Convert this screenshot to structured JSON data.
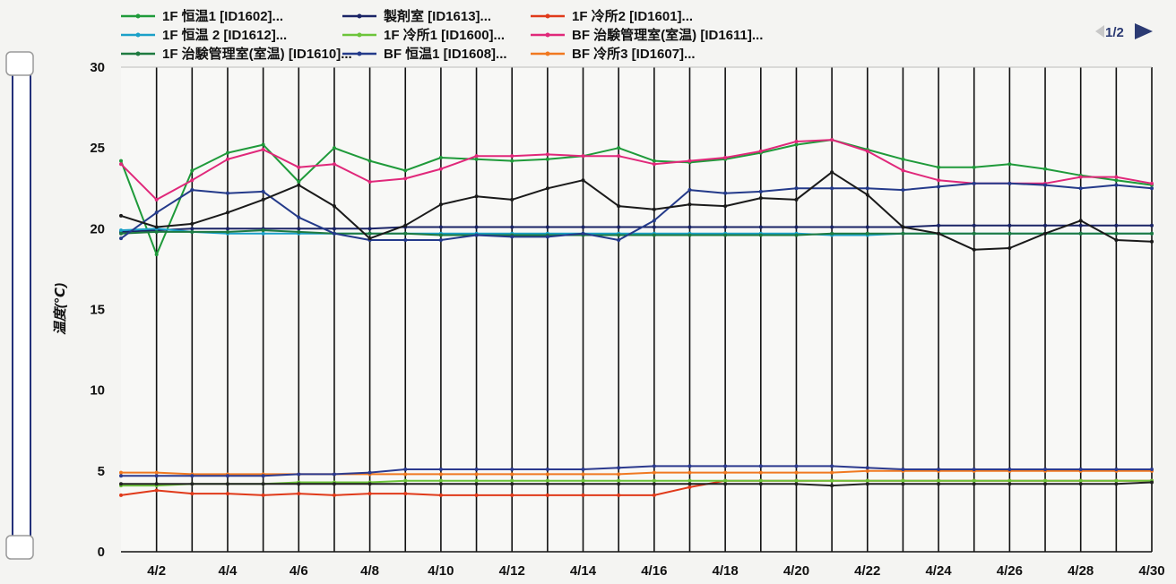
{
  "pager": {
    "label": "1/2"
  },
  "chart_data": {
    "type": "line",
    "title": "",
    "ylabel": "温度(℃)",
    "xlabel": "",
    "ylim": [
      0,
      30
    ],
    "yticks": [
      0,
      5,
      10,
      15,
      20,
      25,
      30
    ],
    "x_start_day": 1,
    "x_end_day": 30,
    "xtick_labels": [
      "4/2",
      "4/4",
      "4/6",
      "4/8",
      "4/10",
      "4/12",
      "4/14",
      "4/16",
      "4/18",
      "4/20",
      "4/22",
      "4/24",
      "4/26",
      "4/28",
      "4/30"
    ],
    "grid": "vertical lines every day",
    "legend_position": "top",
    "series": [
      {
        "name": "1F 恒温1 [ID1602]...",
        "color": "#1f9a3a",
        "values": [
          24.2,
          18.4,
          23.6,
          24.7,
          25.2,
          22.9,
          25.0,
          24.2,
          23.6,
          24.4,
          24.3,
          24.2,
          24.3,
          24.5,
          25.0,
          24.2,
          24.1,
          24.3,
          24.7,
          25.2,
          25.5,
          24.9,
          24.3,
          23.8,
          23.8,
          24.0,
          23.7,
          23.3,
          23.0,
          22.7
        ]
      },
      {
        "name": "製剤室 [ID1613]...",
        "color": "#1a2466",
        "values": [
          19.8,
          19.9,
          20.0,
          20.0,
          20.0,
          20.0,
          20.0,
          20.0,
          20.1,
          20.1,
          20.1,
          20.1,
          20.1,
          20.1,
          20.1,
          20.1,
          20.1,
          20.1,
          20.1,
          20.1,
          20.1,
          20.1,
          20.1,
          20.2,
          20.2,
          20.2,
          20.2,
          20.2,
          20.2,
          20.2
        ]
      },
      {
        "name": "1F 冷所2 [ID1601]...",
        "color": "#e03a1a",
        "values": [
          3.5,
          3.8,
          3.6,
          3.6,
          3.5,
          3.6,
          3.5,
          3.6,
          3.6,
          3.5,
          3.5,
          3.5,
          3.5,
          3.5,
          3.5,
          3.5,
          4.0,
          4.4,
          4.4,
          4.4,
          4.4,
          4.4,
          4.4,
          4.4,
          4.4,
          4.4,
          4.4,
          4.4,
          4.4,
          4.4
        ]
      },
      {
        "name": "1F 恒温 2 [ID1612]...",
        "color": "#1aa0c8",
        "values": [
          19.9,
          20.0,
          19.8,
          19.7,
          19.7,
          19.7,
          19.7,
          19.7,
          19.7,
          19.7,
          19.7,
          19.7,
          19.7,
          19.7,
          19.7,
          19.7,
          19.7,
          19.7,
          19.7,
          19.7,
          19.6,
          19.6,
          19.7,
          19.7,
          19.7,
          19.7,
          19.7,
          19.7,
          19.7,
          19.7
        ]
      },
      {
        "name": "1F 冷所1 [ID1600]...",
        "color": "#6cc43a",
        "values": [
          4.1,
          4.1,
          4.2,
          4.2,
          4.2,
          4.3,
          4.3,
          4.3,
          4.4,
          4.4,
          4.4,
          4.4,
          4.4,
          4.4,
          4.4,
          4.4,
          4.4,
          4.4,
          4.4,
          4.4,
          4.4,
          4.4,
          4.4,
          4.4,
          4.4,
          4.4,
          4.4,
          4.4,
          4.4,
          4.4
        ]
      },
      {
        "name": "BF 治験管理室(室温) [ID1611]...",
        "color": "#e0287a",
        "values": [
          24.0,
          21.8,
          23.0,
          24.3,
          24.9,
          23.8,
          24.0,
          22.9,
          23.1,
          23.7,
          24.5,
          24.5,
          24.6,
          24.5,
          24.5,
          24.0,
          24.2,
          24.4,
          24.8,
          25.4,
          25.5,
          24.8,
          23.6,
          23.0,
          22.8,
          22.8,
          22.8,
          23.2,
          23.2,
          22.8
        ]
      },
      {
        "name": "1F 治験管理室(室温) [ID1610]...",
        "color": "#1e7a40",
        "values": [
          19.7,
          19.8,
          19.8,
          19.8,
          19.9,
          19.8,
          19.7,
          19.7,
          19.7,
          19.6,
          19.6,
          19.6,
          19.6,
          19.6,
          19.6,
          19.6,
          19.6,
          19.6,
          19.6,
          19.6,
          19.7,
          19.7,
          19.7,
          19.7,
          19.7,
          19.7,
          19.7,
          19.7,
          19.7,
          19.7
        ]
      },
      {
        "name": "BF 恒温1 [ID1608]...",
        "color": "#243a8a",
        "values": [
          19.4,
          21.0,
          22.4,
          22.2,
          22.3,
          20.7,
          19.7,
          19.3,
          19.3,
          19.3,
          19.6,
          19.5,
          19.5,
          19.7,
          19.3,
          20.5,
          22.4,
          22.2,
          22.3,
          22.5,
          22.5,
          22.5,
          22.4,
          22.6,
          22.8,
          22.8,
          22.7,
          22.5,
          22.7,
          22.5
        ]
      },
      {
        "name": "BF 冷所3 [ID1607]...",
        "color": "#f07820",
        "values": [
          4.9,
          4.9,
          4.8,
          4.8,
          4.8,
          4.8,
          4.8,
          4.8,
          4.8,
          4.8,
          4.8,
          4.8,
          4.8,
          4.8,
          4.8,
          4.9,
          4.9,
          4.9,
          4.9,
          4.9,
          4.9,
          5.0,
          5.0,
          5.0,
          5.0,
          5.0,
          5.0,
          5.0,
          5.0,
          5.0
        ]
      },
      {
        "name": "",
        "color": "#1a1a1a",
        "values": [
          20.8,
          20.1,
          20.3,
          21.0,
          21.8,
          22.7,
          21.4,
          19.4,
          20.2,
          21.5,
          22.0,
          21.8,
          22.5,
          23.0,
          21.4,
          21.2,
          21.5,
          21.4,
          21.9,
          21.8,
          23.5,
          22.1,
          20.1,
          19.7,
          18.7,
          18.8,
          19.7,
          20.5,
          19.3,
          19.2
        ]
      },
      {
        "name": "",
        "color": "#2c3a8e",
        "values": [
          4.7,
          4.7,
          4.7,
          4.7,
          4.7,
          4.8,
          4.8,
          4.9,
          5.1,
          5.1,
          5.1,
          5.1,
          5.1,
          5.1,
          5.2,
          5.3,
          5.3,
          5.3,
          5.3,
          5.3,
          5.3,
          5.2,
          5.1,
          5.1,
          5.1,
          5.1,
          5.1,
          5.1,
          5.1,
          5.1
        ]
      },
      {
        "name": "",
        "color": "#222222",
        "values": [
          4.2,
          4.2,
          4.2,
          4.2,
          4.2,
          4.2,
          4.2,
          4.2,
          4.2,
          4.2,
          4.2,
          4.2,
          4.2,
          4.2,
          4.2,
          4.2,
          4.2,
          4.2,
          4.2,
          4.2,
          4.1,
          4.2,
          4.2,
          4.2,
          4.2,
          4.2,
          4.2,
          4.2,
          4.2,
          4.3
        ]
      }
    ],
    "legend_rows": [
      [
        0,
        1,
        2
      ],
      [
        3,
        4,
        5
      ],
      [
        6,
        7,
        8
      ]
    ]
  }
}
